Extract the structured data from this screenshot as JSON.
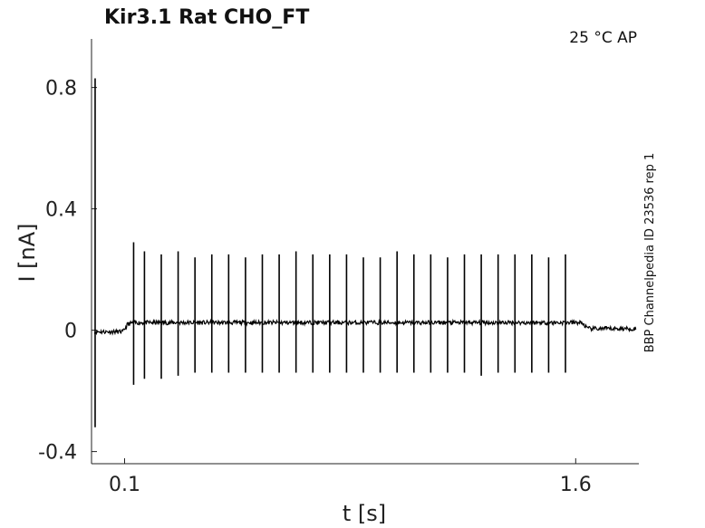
{
  "chart_data": {
    "type": "line",
    "title": "Kir3.1  Rat  CHO_FT",
    "condition": "25 °C  AP",
    "side_label": "BBP Channelpedia ID 23536 rep 1",
    "xlabel": "t [s]",
    "ylabel": "I [nA]",
    "xlim": [
      -0.01,
      1.81
    ],
    "ylim": [
      -0.44,
      0.96
    ],
    "xticks": [
      0.1,
      1.6
    ],
    "xtick_labels": [
      "0.1",
      "1.6"
    ],
    "yticks": [
      0.8,
      0.4,
      0,
      -0.4
    ],
    "ytick_labels": [
      "0.8",
      "0.4",
      "0",
      "-0.4"
    ],
    "grid": false,
    "baseline": {
      "x": [
        0.0,
        0.095,
        0.11,
        0.13,
        1.62,
        1.64,
        1.8
      ],
      "y": [
        -0.005,
        -0.005,
        0.02,
        0.025,
        0.025,
        0.005,
        0.005
      ]
    },
    "stimulus_transient": {
      "x": 0.002,
      "ymax": 0.83,
      "ymin": -0.32
    },
    "series": [
      {
        "spike_times": [
          0.13,
          0.166,
          0.222,
          0.278,
          0.334,
          0.39,
          0.446,
          0.502,
          0.558,
          0.614,
          0.67,
          0.726,
          0.782,
          0.838,
          0.894,
          0.95,
          1.006,
          1.062,
          1.118,
          1.174,
          1.23,
          1.286,
          1.342,
          1.398,
          1.454,
          1.51,
          1.566
        ],
        "spike_peaks": [
          0.29,
          0.26,
          0.25,
          0.26,
          0.24,
          0.25,
          0.25,
          0.24,
          0.25,
          0.25,
          0.26,
          0.25,
          0.25,
          0.25,
          0.24,
          0.24,
          0.26,
          0.25,
          0.25,
          0.24,
          0.25,
          0.25,
          0.25,
          0.25,
          0.25,
          0.24,
          0.25
        ],
        "spike_troughs": [
          -0.18,
          -0.16,
          -0.16,
          -0.15,
          -0.14,
          -0.14,
          -0.14,
          -0.14,
          -0.14,
          -0.14,
          -0.14,
          -0.14,
          -0.14,
          -0.14,
          -0.14,
          -0.14,
          -0.14,
          -0.14,
          -0.14,
          -0.14,
          -0.14,
          -0.15,
          -0.14,
          -0.14,
          -0.14,
          -0.14,
          -0.14
        ]
      }
    ]
  }
}
